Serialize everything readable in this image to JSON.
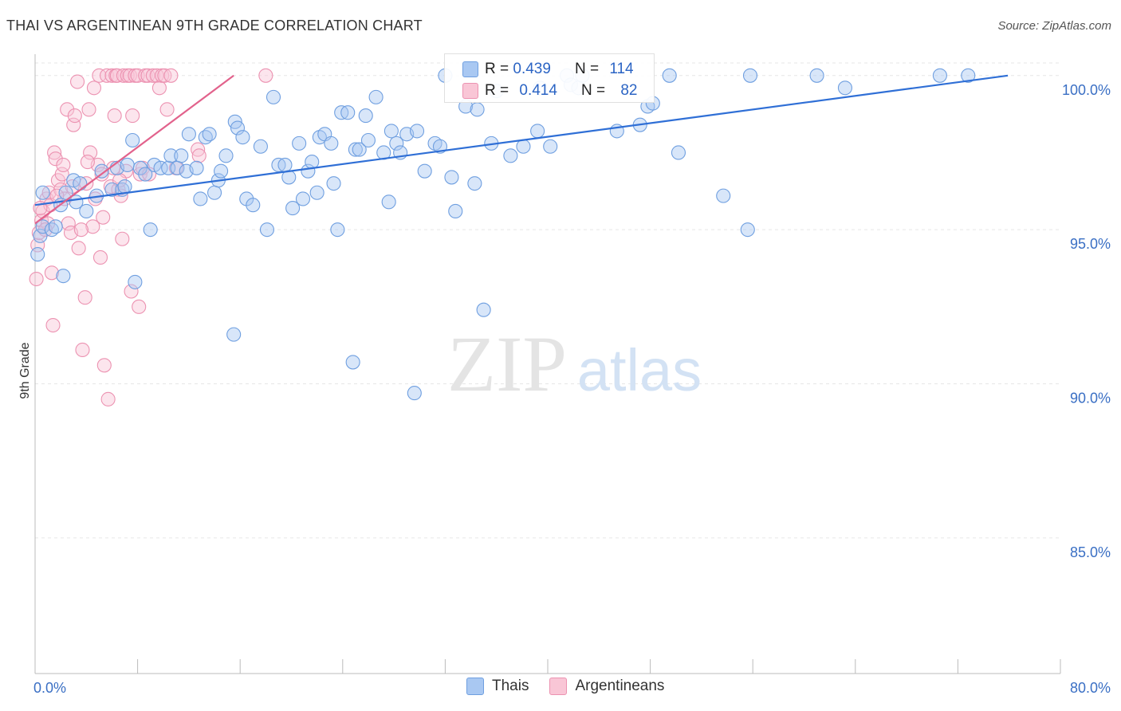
{
  "title": "THAI VS ARGENTINEAN 9TH GRADE CORRELATION CHART",
  "source": "Source: ZipAtlas.com",
  "watermark": {
    "zip": "ZIP",
    "atlas": "atlas"
  },
  "colors": {
    "blue": "#6f9fe0",
    "blue_fill": "#a9c8f2",
    "blue_line": "#2f6fd6",
    "pink": "#ec92b1",
    "pink_fill": "#f9c6d6",
    "pink_line": "#e2628c",
    "tick_text": "#3a6fc4"
  },
  "stats": [
    {
      "r_label": "R =",
      "r_value": "0.439",
      "n_label": "N =",
      "n_value": "114"
    },
    {
      "r_label": "R =",
      "r_value": "0.414",
      "n_label": "N =",
      "n_value": "82"
    }
  ],
  "legend": [
    {
      "label": "Thais"
    },
    {
      "label": "Argentineans"
    }
  ],
  "chart_data": {
    "type": "scatter",
    "title": "THAI VS ARGENTINEAN 9TH GRADE CORRELATION CHART",
    "xlabel": "",
    "ylabel": "9th Grade",
    "xlim": [
      0,
      80
    ],
    "ylim": [
      80.6,
      100.9
    ],
    "x_tick_labels": [
      "0.0%",
      "80.0%"
    ],
    "y_ticks": [
      85,
      90,
      95,
      100
    ],
    "y_tick_labels": [
      "85.0%",
      "90.0%",
      "95.0%",
      "100.0%"
    ],
    "grid": true,
    "series": [
      {
        "name": "Thais",
        "trend": {
          "x": [
            0,
            75.9
          ],
          "y": [
            95.8,
            100.0
          ]
        },
        "points": [
          [
            0.2,
            94.2
          ],
          [
            0.4,
            94.8
          ],
          [
            0.6,
            95.1
          ],
          [
            1.3,
            95.0
          ],
          [
            1.6,
            95.1
          ],
          [
            2.2,
            93.5
          ],
          [
            2.0,
            95.8
          ],
          [
            2.4,
            96.2
          ],
          [
            3.0,
            96.6
          ],
          [
            3.2,
            95.9
          ],
          [
            3.5,
            96.5
          ],
          [
            4.0,
            95.6
          ],
          [
            4.8,
            96.1
          ],
          [
            5.2,
            96.9
          ],
          [
            6.0,
            96.3
          ],
          [
            6.4,
            97.0
          ],
          [
            6.8,
            96.3
          ],
          [
            7.0,
            96.4
          ],
          [
            7.2,
            97.1
          ],
          [
            7.6,
            97.9
          ],
          [
            7.8,
            93.3
          ],
          [
            8.2,
            97.0
          ],
          [
            8.6,
            96.8
          ],
          [
            9.0,
            95.0
          ],
          [
            9.3,
            97.1
          ],
          [
            9.8,
            97.0
          ],
          [
            10.4,
            97.0
          ],
          [
            10.6,
            97.4
          ],
          [
            11.1,
            97.0
          ],
          [
            11.4,
            97.4
          ],
          [
            11.8,
            96.9
          ],
          [
            12.0,
            98.1
          ],
          [
            12.6,
            97.0
          ],
          [
            12.9,
            96.0
          ],
          [
            13.3,
            98.0
          ],
          [
            13.6,
            98.1
          ],
          [
            14.0,
            96.2
          ],
          [
            14.3,
            96.6
          ],
          [
            14.5,
            96.9
          ],
          [
            14.9,
            97.4
          ],
          [
            15.5,
            91.6
          ],
          [
            15.6,
            98.5
          ],
          [
            15.8,
            98.3
          ],
          [
            16.2,
            98.0
          ],
          [
            16.5,
            96.0
          ],
          [
            17.0,
            95.8
          ],
          [
            17.6,
            97.7
          ],
          [
            18.1,
            95.0
          ],
          [
            18.6,
            99.3
          ],
          [
            19.0,
            97.1
          ],
          [
            19.5,
            97.1
          ],
          [
            19.8,
            96.7
          ],
          [
            20.1,
            95.7
          ],
          [
            20.6,
            97.8
          ],
          [
            20.9,
            96.0
          ],
          [
            21.3,
            96.9
          ],
          [
            21.6,
            97.2
          ],
          [
            22.0,
            96.2
          ],
          [
            22.2,
            98.0
          ],
          [
            22.6,
            98.1
          ],
          [
            23.1,
            97.8
          ],
          [
            23.3,
            96.5
          ],
          [
            23.6,
            95.0
          ],
          [
            23.9,
            98.8
          ],
          [
            24.4,
            98.8
          ],
          [
            24.8,
            90.7
          ],
          [
            25.0,
            97.6
          ],
          [
            25.3,
            97.6
          ],
          [
            25.8,
            98.7
          ],
          [
            26.0,
            97.9
          ],
          [
            26.6,
            99.3
          ],
          [
            27.2,
            97.5
          ],
          [
            27.6,
            95.9
          ],
          [
            27.8,
            98.2
          ],
          [
            28.2,
            97.8
          ],
          [
            28.5,
            97.5
          ],
          [
            29.0,
            98.1
          ],
          [
            29.6,
            89.7
          ],
          [
            29.8,
            98.2
          ],
          [
            30.4,
            96.9
          ],
          [
            31.2,
            97.8
          ],
          [
            31.6,
            97.7
          ],
          [
            32.0,
            100.0
          ],
          [
            32.5,
            96.7
          ],
          [
            32.8,
            95.6
          ],
          [
            33.6,
            99.0
          ],
          [
            34.5,
            98.9
          ],
          [
            34.3,
            96.5
          ],
          [
            35.0,
            92.4
          ],
          [
            35.6,
            97.8
          ],
          [
            36.0,
            99.5
          ],
          [
            37.1,
            97.4
          ],
          [
            38.1,
            97.7
          ],
          [
            39.2,
            98.2
          ],
          [
            39.4,
            99.6
          ],
          [
            40.2,
            97.7
          ],
          [
            41.5,
            100.0
          ],
          [
            41.8,
            99.7
          ],
          [
            42.4,
            99.6
          ],
          [
            42.7,
            100.0
          ],
          [
            45.4,
            98.2
          ],
          [
            47.2,
            98.4
          ],
          [
            47.8,
            99.0
          ],
          [
            48.2,
            99.1
          ],
          [
            49.5,
            100.0
          ],
          [
            50.2,
            97.5
          ],
          [
            53.7,
            96.1
          ],
          [
            55.6,
            95.0
          ],
          [
            55.8,
            100.0
          ],
          [
            61.0,
            100.0
          ],
          [
            63.2,
            99.6
          ],
          [
            70.6,
            100.0
          ],
          [
            72.8,
            100.0
          ],
          [
            0.6,
            96.2
          ]
        ]
      },
      {
        "name": "Argentineans",
        "trend": {
          "x": [
            0,
            15.5
          ],
          "y": [
            95.2,
            100.0
          ]
        },
        "points": [
          [
            0.1,
            93.4
          ],
          [
            0.2,
            94.5
          ],
          [
            0.3,
            94.9
          ],
          [
            0.5,
            95.3
          ],
          [
            0.6,
            95.6
          ],
          [
            0.9,
            96.0
          ],
          [
            1.0,
            95.2
          ],
          [
            1.1,
            96.2
          ],
          [
            1.3,
            93.6
          ],
          [
            1.4,
            91.9
          ],
          [
            1.5,
            97.5
          ],
          [
            1.6,
            97.3
          ],
          [
            1.8,
            96.6
          ],
          [
            2.0,
            96.3
          ],
          [
            2.1,
            96.8
          ],
          [
            2.3,
            96.0
          ],
          [
            2.5,
            98.9
          ],
          [
            2.6,
            95.2
          ],
          [
            2.8,
            94.9
          ],
          [
            3.0,
            98.4
          ],
          [
            3.1,
            98.7
          ],
          [
            3.3,
            99.8
          ],
          [
            3.4,
            94.4
          ],
          [
            3.7,
            91.1
          ],
          [
            3.9,
            92.8
          ],
          [
            4.0,
            96.5
          ],
          [
            4.2,
            98.9
          ],
          [
            4.3,
            97.5
          ],
          [
            4.5,
            95.1
          ],
          [
            4.6,
            99.6
          ],
          [
            4.7,
            96.0
          ],
          [
            4.9,
            97.1
          ],
          [
            5.0,
            100.0
          ],
          [
            5.1,
            94.1
          ],
          [
            5.2,
            96.8
          ],
          [
            5.4,
            90.6
          ],
          [
            5.6,
            100.0
          ],
          [
            5.7,
            89.5
          ],
          [
            5.9,
            96.4
          ],
          [
            6.0,
            100.0
          ],
          [
            6.2,
            98.7
          ],
          [
            6.3,
            100.0
          ],
          [
            6.4,
            100.0
          ],
          [
            6.5,
            96.3
          ],
          [
            6.7,
            96.1
          ],
          [
            6.8,
            94.7
          ],
          [
            6.9,
            100.0
          ],
          [
            7.1,
            96.9
          ],
          [
            7.2,
            100.0
          ],
          [
            7.4,
            100.0
          ],
          [
            7.5,
            93.0
          ],
          [
            7.6,
            98.7
          ],
          [
            7.8,
            100.0
          ],
          [
            8.0,
            100.0
          ],
          [
            8.1,
            92.5
          ],
          [
            8.2,
            96.8
          ],
          [
            8.4,
            97.0
          ],
          [
            8.6,
            100.0
          ],
          [
            8.8,
            100.0
          ],
          [
            8.9,
            96.8
          ],
          [
            9.2,
            100.0
          ],
          [
            9.5,
            100.0
          ],
          [
            9.7,
            99.6
          ],
          [
            9.9,
            100.0
          ],
          [
            10.1,
            100.0
          ],
          [
            10.3,
            98.9
          ],
          [
            10.6,
            100.0
          ],
          [
            11.0,
            97.0
          ],
          [
            12.7,
            97.6
          ],
          [
            12.8,
            97.4
          ],
          [
            18.0,
            100.0
          ],
          [
            0.8,
            95.0
          ],
          [
            1.2,
            95.8
          ],
          [
            2.2,
            97.1
          ],
          [
            2.9,
            96.4
          ],
          [
            3.6,
            95.0
          ],
          [
            4.1,
            97.2
          ],
          [
            5.3,
            95.4
          ],
          [
            6.1,
            97.0
          ],
          [
            6.6,
            96.6
          ],
          [
            0.4,
            95.7
          ],
          [
            1.7,
            96.1
          ]
        ]
      }
    ]
  }
}
